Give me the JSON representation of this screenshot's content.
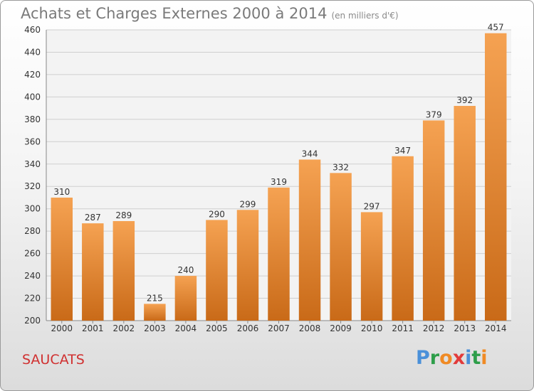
{
  "title": "Achats et Charges Externes 2000 à 2014",
  "subtitle": "(en milliers d'€)",
  "commune": "SAUCATS",
  "logo": {
    "letters": [
      {
        "ch": "P",
        "color": "#4a90d9"
      },
      {
        "ch": "r",
        "color": "#2e9e4a"
      },
      {
        "ch": "o",
        "color": "#f08a24"
      },
      {
        "ch": "x",
        "color": "#e23b3b"
      },
      {
        "ch": "i",
        "color": "#4a90d9"
      },
      {
        "ch": "t",
        "color": "#2e9e4a"
      },
      {
        "ch": "i",
        "color": "#f08a24"
      }
    ]
  },
  "chart_data": {
    "type": "bar",
    "categories": [
      "2000",
      "2001",
      "2002",
      "2003",
      "2004",
      "2005",
      "2006",
      "2007",
      "2008",
      "2009",
      "2010",
      "2011",
      "2012",
      "2013",
      "2014"
    ],
    "values": [
      310,
      287,
      289,
      215,
      240,
      290,
      299,
      319,
      344,
      332,
      297,
      347,
      379,
      392,
      457
    ],
    "ylim": [
      200,
      460
    ],
    "yticks": [
      200,
      220,
      240,
      260,
      280,
      300,
      320,
      340,
      360,
      380,
      400,
      420,
      440,
      460
    ],
    "grid": true,
    "bar_color_top": "#f5a252",
    "bar_color_bottom": "#c96a18"
  }
}
